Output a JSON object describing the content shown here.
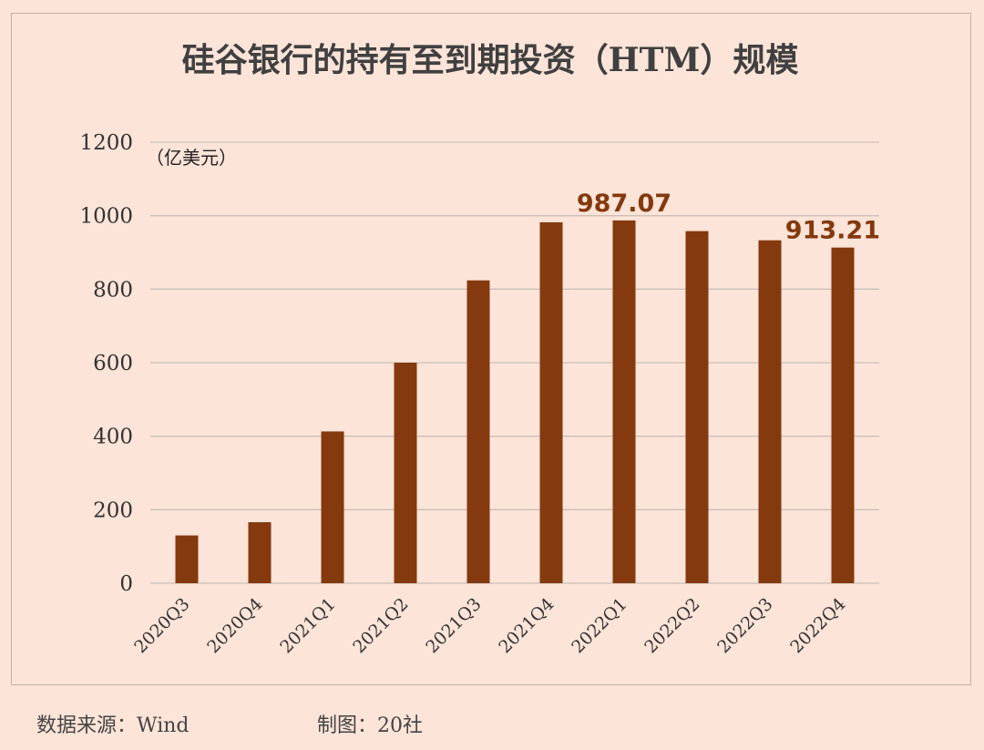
{
  "chart_data": {
    "type": "bar",
    "title": "硅谷银行的持有至到期投资（HTM）规模",
    "unit_label": "（亿美元）",
    "categories": [
      "2020Q3",
      "2020Q4",
      "2021Q1",
      "2021Q2",
      "2021Q3",
      "2021Q4",
      "2022Q1",
      "2022Q2",
      "2022Q3",
      "2022Q4"
    ],
    "values": [
      130,
      166,
      413,
      600,
      824,
      982,
      987.07,
      958,
      933,
      913.21
    ],
    "data_labels": [
      {
        "index": 6,
        "text": "987.07"
      },
      {
        "index": 9,
        "text": "913.21"
      }
    ],
    "yticks": [
      "0",
      "200",
      "400",
      "600",
      "800",
      "1000",
      "1200"
    ],
    "ylim": [
      0,
      1200
    ],
    "grid": true,
    "legend": "none",
    "bar_color": "#84390E",
    "grid_color": "#C9C0BA",
    "label_color": "#84390E"
  },
  "footer": {
    "source": "数据来源：Wind",
    "credit": "制图：20社"
  }
}
